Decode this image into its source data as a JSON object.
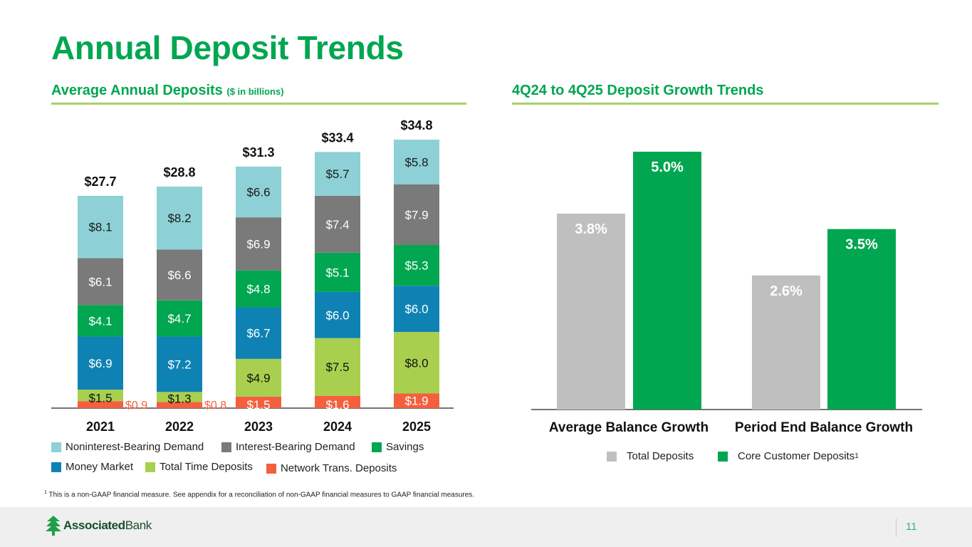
{
  "page": {
    "title": "Annual Deposit Trends",
    "left_subtitle": "Average Annual Deposits",
    "left_subtitle_note": "($ in billions)",
    "right_subtitle": "4Q24 to 4Q25 Deposit Growth Trends",
    "footnote_marker": "1",
    "footnote": "This is a non-GAAP financial measure. See appendix for a reconciliation of non-GAAP financial measures to GAAP financial measures.",
    "brand_bold": "Associated",
    "brand_regular": "Bank",
    "page_number": "11",
    "colors": {
      "brand_green": "#00a650",
      "rule_green": "#a8d26a"
    }
  },
  "chart_data": [
    {
      "type": "bar",
      "stacked": true,
      "title": "Average Annual Deposits ($ in billions)",
      "xlabel": "",
      "ylabel": "",
      "ylim": [
        0,
        36
      ],
      "grid": false,
      "legend_position": "bottom",
      "categories": [
        "2021",
        "2022",
        "2023",
        "2024",
        "2025"
      ],
      "totals": [
        "$27.7",
        "$28.8",
        "$31.3",
        "$33.4",
        "$34.8"
      ],
      "total_values": [
        27.7,
        28.8,
        31.3,
        33.4,
        34.8
      ],
      "series": [
        {
          "name": "Network Trans. Deposits",
          "color": "#f4603e",
          "label_color": "#ffffff",
          "values": [
            0.9,
            0.8,
            1.5,
            1.6,
            1.9
          ],
          "labels": [
            "$0.9",
            "$0.8",
            "$1.5",
            "$1.6",
            "$1.9"
          ],
          "outside_label": [
            true,
            true,
            false,
            false,
            false
          ]
        },
        {
          "name": "Total Time Deposits",
          "color": "#a8d04e",
          "label_color": "#111111",
          "values": [
            1.5,
            1.3,
            4.9,
            7.5,
            8.0
          ],
          "labels": [
            "$1.5",
            "$1.3",
            "$4.9",
            "$7.5",
            "$8.0"
          ]
        },
        {
          "name": "Money Market",
          "color": "#0f82b4",
          "label_color": "#ffffff",
          "values": [
            6.9,
            7.2,
            6.7,
            6.0,
            6.0
          ],
          "labels": [
            "$6.9",
            "$7.2",
            "$6.7",
            "$6.0",
            "$6.0"
          ]
        },
        {
          "name": "Savings",
          "color": "#00a650",
          "label_color": "#ffffff",
          "values": [
            4.1,
            4.7,
            4.8,
            5.1,
            5.3
          ],
          "labels": [
            "$4.1",
            "$4.7",
            "$4.8",
            "$5.1",
            "$5.3"
          ]
        },
        {
          "name": "Interest-Bearing Demand",
          "color": "#7a7a7a",
          "label_color": "#ffffff",
          "values": [
            6.1,
            6.6,
            6.9,
            7.4,
            7.9
          ],
          "labels": [
            "$6.1",
            "$6.6",
            "$6.9",
            "$7.4",
            "$7.9"
          ]
        },
        {
          "name": "Noninterest-Bearing Demand",
          "color": "#8dd1d6",
          "label_color": "#1a1a1a",
          "values": [
            8.1,
            8.2,
            6.6,
            5.7,
            5.8
          ],
          "labels": [
            "$8.1",
            "$8.2",
            "$6.6",
            "$5.7",
            "$5.8"
          ]
        }
      ],
      "legend": [
        [
          "Noninterest-Bearing Demand",
          "Interest-Bearing Demand",
          "Savings"
        ],
        [
          "Money Market",
          "Total Time Deposits",
          "Network Trans. Deposits"
        ]
      ]
    },
    {
      "type": "bar",
      "stacked": false,
      "title": "4Q24 to 4Q25 Deposit Growth Trends",
      "xlabel": "",
      "ylabel": "",
      "ylim": [
        0,
        5.5
      ],
      "grid": false,
      "legend_position": "bottom",
      "categories": [
        "Average Balance Growth",
        "Period End Balance Growth"
      ],
      "series": [
        {
          "name": "Total Deposits",
          "color": "#bfbfbf",
          "values": [
            3.8,
            2.6
          ],
          "labels": [
            "3.8%",
            "2.6%"
          ]
        },
        {
          "name": "Core Customer Deposits",
          "superscript": "1",
          "color": "#00a650",
          "values": [
            5.0,
            3.5
          ],
          "labels": [
            "5.0%",
            "3.5%"
          ]
        }
      ]
    }
  ]
}
